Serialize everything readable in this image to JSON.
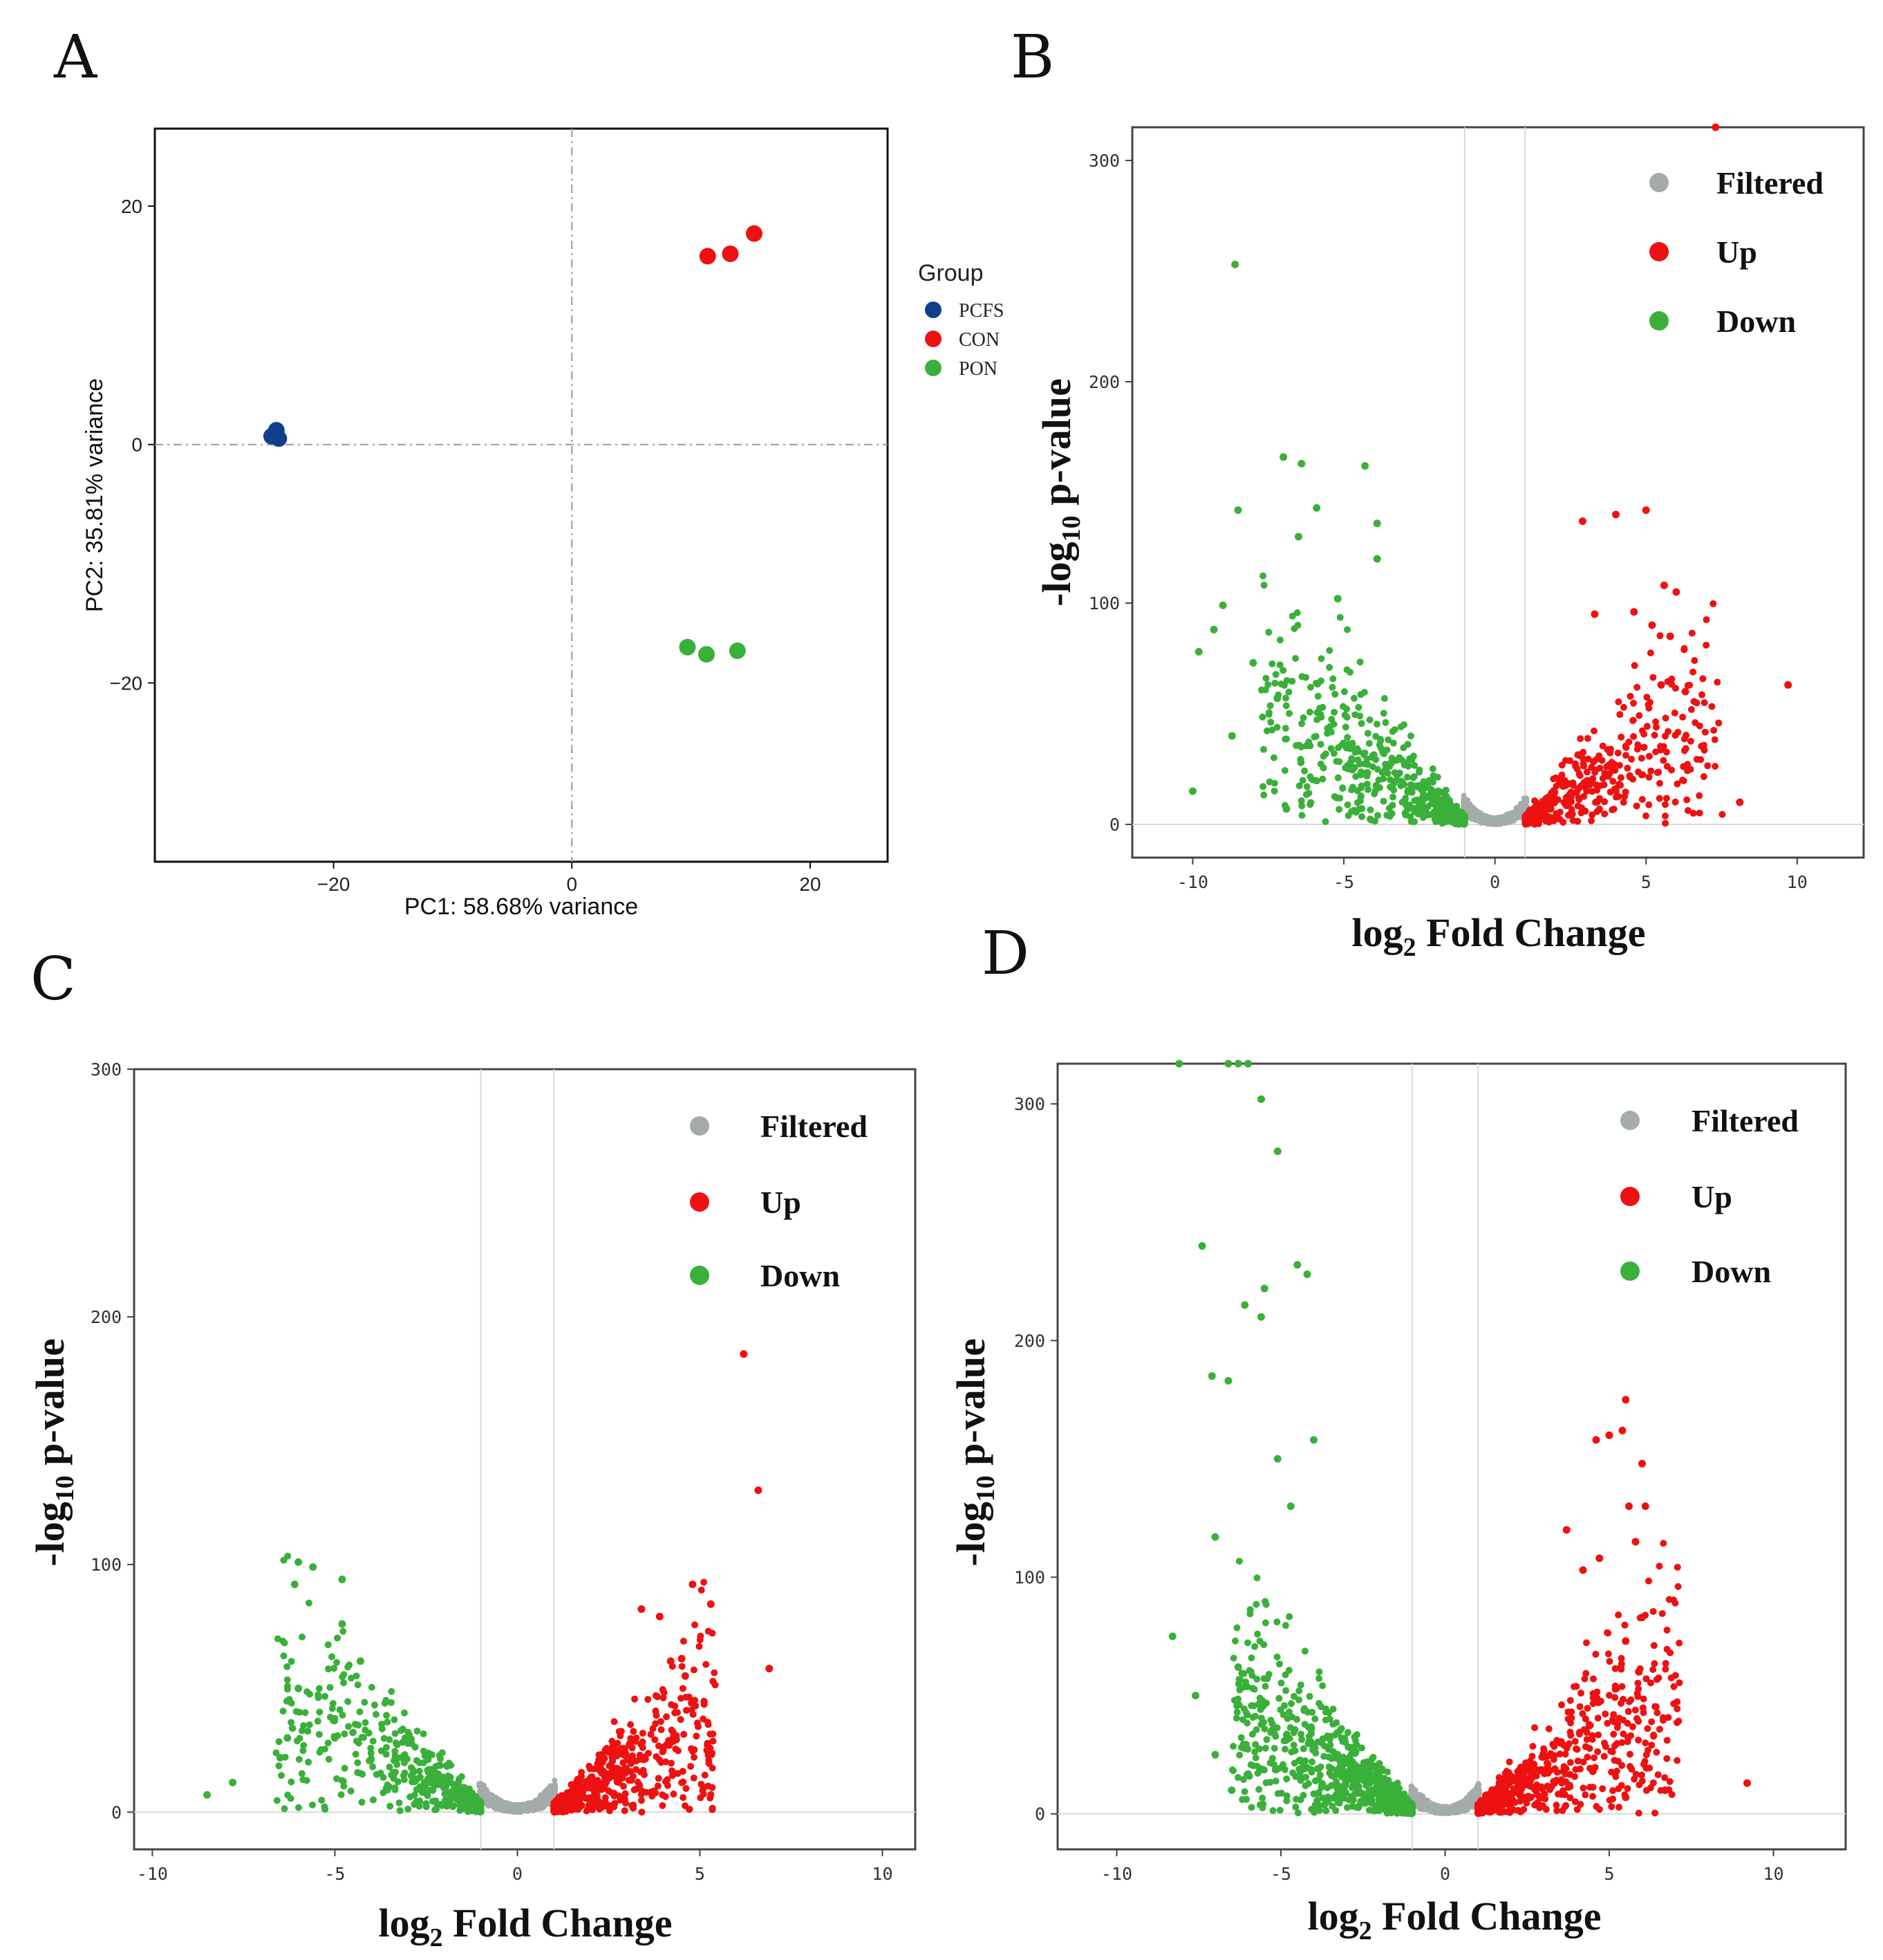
{
  "panel_labels": [
    "A",
    "B",
    "C",
    "D"
  ],
  "colors": {
    "PCFS": "#123f8c",
    "CON": "#ee1111",
    "PON": "#3ab03a",
    "Filtered": "#a4abab",
    "Up": "#ee1111",
    "Down": "#3ab03a",
    "zero_line": "#a8a8a8",
    "grid_line": "#d8d8d8"
  },
  "chart_data": [
    {
      "panel": "A",
      "type": "scatter",
      "title": "",
      "xlabel": "PC1: 58.68% variance",
      "ylabel": "PC2: 35.81% variance",
      "xlim": [
        -35,
        26.5
      ],
      "ylim": [
        -35,
        26.5
      ],
      "xticks": [
        -20,
        0,
        20
      ],
      "yticks": [
        -20,
        0,
        20
      ],
      "xtick_labels": [
        "−20",
        "0",
        "20"
      ],
      "ytick_labels": [
        "−20",
        "0",
        "20"
      ],
      "legend_title": "Group",
      "legend_position": "right",
      "series": [
        {
          "name": "PCFS",
          "x": [
            -24.8,
            -25.2,
            -24.6
          ],
          "y": [
            1.2,
            0.7,
            0.5
          ]
        },
        {
          "name": "CON",
          "x": [
            11.4,
            13.3,
            15.3
          ],
          "y": [
            15.8,
            16.0,
            17.7
          ]
        },
        {
          "name": "PON",
          "x": [
            9.7,
            11.3,
            13.9
          ],
          "y": [
            -17.0,
            -17.6,
            -17.3
          ]
        }
      ]
    },
    {
      "panel": "B",
      "type": "scatter",
      "subtype": "volcano",
      "xlabel": "log2 Fold Change",
      "xlabel_base": "log",
      "xlabel_sub": "2",
      "xlabel_rest": " Fold Change",
      "ylabel": "-log10 p-value",
      "ylabel_base": "-log",
      "ylabel_sub": "10",
      "ylabel_rest": " p-value",
      "xlim": [
        -12,
        12.2
      ],
      "ylim": [
        -15,
        315
      ],
      "xticks": [
        -10,
        -5,
        0,
        5,
        10
      ],
      "yticks": [
        0,
        100,
        200,
        300
      ],
      "thresholds": [
        -1,
        1
      ],
      "legend": [
        "Filtered",
        "Up",
        "Down"
      ],
      "highlighted_points": {
        "Up": [
          [
            7.3,
            315
          ],
          [
            9.7,
            63
          ],
          [
            8.1,
            10
          ],
          [
            5.0,
            142
          ],
          [
            5.6,
            108
          ],
          [
            6.0,
            105
          ],
          [
            4.0,
            140
          ],
          [
            2.9,
            137
          ],
          [
            4.6,
            96
          ],
          [
            5.2,
            90
          ],
          [
            6.3,
            60
          ],
          [
            5.8,
            85
          ],
          [
            5.5,
            63
          ],
          [
            3.3,
            95
          ]
        ],
        "Down": [
          [
            -8.6,
            253
          ],
          [
            -7.0,
            166
          ],
          [
            -6.4,
            163
          ],
          [
            -4.3,
            162
          ],
          [
            -5.9,
            143
          ],
          [
            -8.5,
            142
          ],
          [
            -3.9,
            136
          ],
          [
            -6.5,
            130
          ],
          [
            -3.9,
            120
          ],
          [
            -9.0,
            99
          ],
          [
            -9.3,
            88
          ],
          [
            -9.8,
            78
          ],
          [
            -8.0,
            73
          ],
          [
            -10.0,
            15
          ],
          [
            -7.2,
            57
          ],
          [
            -8.7,
            40
          ],
          [
            -6.9,
            7
          ],
          [
            -5.2,
            102
          ]
        ]
      },
      "bulk_counts": {
        "Filtered": 900,
        "Up": 460,
        "Down": 640
      },
      "x_max_abs": {
        "Up": 9.7,
        "Down": 10.0
      }
    },
    {
      "panel": "C",
      "type": "scatter",
      "subtype": "volcano",
      "xlabel": "log2 Fold Change",
      "xlabel_base": "log",
      "xlabel_sub": "2",
      "xlabel_rest": " Fold Change",
      "ylabel": "-log10 p-value",
      "ylabel_base": "-log",
      "ylabel_sub": "10",
      "ylabel_rest": " p-value",
      "xlim": [
        -10.5,
        10.9
      ],
      "ylim": [
        -15,
        300
      ],
      "xticks": [
        -10,
        -5,
        0,
        5,
        10
      ],
      "yticks": [
        0,
        100,
        200,
        300
      ],
      "thresholds": [
        -1,
        1
      ],
      "legend": [
        "Filtered",
        "Up",
        "Down"
      ],
      "highlighted_points": {
        "Up": [
          [
            6.2,
            185
          ],
          [
            6.6,
            130
          ],
          [
            6.9,
            58
          ],
          [
            4.8,
            92
          ],
          [
            5.3,
            84
          ],
          [
            3.4,
            82
          ],
          [
            3.9,
            79
          ],
          [
            4.5,
            62
          ],
          [
            4.2,
            61
          ],
          [
            4.6,
            55
          ],
          [
            5.2,
            25
          ],
          [
            5.1,
            10
          ]
        ],
        "Down": [
          [
            -6.0,
            101
          ],
          [
            -5.6,
            99
          ],
          [
            -4.8,
            94
          ],
          [
            -6.1,
            92
          ],
          [
            -4.8,
            76
          ],
          [
            -4.3,
            61
          ],
          [
            -6.0,
            50
          ],
          [
            -8.5,
            7
          ],
          [
            -7.8,
            12
          ],
          [
            -6.5,
            22
          ],
          [
            -6.3,
            30
          ],
          [
            -5.0,
            30
          ]
        ]
      },
      "bulk_counts": {
        "Filtered": 900,
        "Up": 560,
        "Down": 520
      },
      "x_max_abs": {
        "Up": 6.9,
        "Down": 8.5
      }
    },
    {
      "panel": "D",
      "type": "scatter",
      "subtype": "volcano",
      "xlabel": "log2 Fold Change",
      "xlabel_base": "log",
      "xlabel_sub": "2",
      "xlabel_rest": " Fold Change",
      "ylabel": "-log10 p-value",
      "ylabel_base": "-log",
      "ylabel_sub": "10",
      "ylabel_rest": " p-value",
      "xlim": [
        -11.8,
        12.2
      ],
      "ylim": [
        -15,
        317
      ],
      "xticks": [
        -10,
        -5,
        0,
        5,
        10
      ],
      "yticks": [
        0,
        100,
        200,
        300
      ],
      "thresholds": [
        -1,
        1
      ],
      "legend": [
        "Filtered",
        "Up",
        "Down"
      ],
      "highlighted_points": {
        "Up": [
          [
            5.5,
            175
          ],
          [
            5.4,
            162
          ],
          [
            6.0,
            148
          ],
          [
            5.0,
            160
          ],
          [
            4.6,
            158
          ],
          [
            5.6,
            130
          ],
          [
            6.1,
            130
          ],
          [
            4.7,
            108
          ],
          [
            5.8,
            115
          ],
          [
            3.7,
            120
          ],
          [
            4.2,
            103
          ],
          [
            6.0,
            83
          ],
          [
            5.5,
            73
          ],
          [
            5.9,
            60
          ],
          [
            6.7,
            10
          ],
          [
            9.2,
            13
          ],
          [
            4.5,
            18
          ],
          [
            5.5,
            7
          ]
        ],
        "Down": [
          [
            -8.1,
            317
          ],
          [
            -6.6,
            317
          ],
          [
            -6.3,
            317
          ],
          [
            -6.0,
            317
          ],
          [
            -5.6,
            302
          ],
          [
            -5.1,
            280
          ],
          [
            -7.4,
            240
          ],
          [
            -4.5,
            232
          ],
          [
            -4.2,
            228
          ],
          [
            -5.5,
            222
          ],
          [
            -6.1,
            215
          ],
          [
            -5.6,
            210
          ],
          [
            -8.3,
            75
          ],
          [
            -7.6,
            50
          ],
          [
            -7.0,
            117
          ],
          [
            -6.6,
            183
          ],
          [
            -7.1,
            185
          ],
          [
            -4.0,
            158
          ],
          [
            -6.3,
            62
          ],
          [
            -5.1,
            150
          ],
          [
            -4.7,
            130
          ],
          [
            -7.0,
            25
          ],
          [
            -6.5,
            10
          ]
        ]
      },
      "bulk_counts": {
        "Filtered": 1000,
        "Up": 700,
        "Down": 900
      },
      "x_max_abs": {
        "Up": 9.2,
        "Down": 8.3
      }
    }
  ]
}
